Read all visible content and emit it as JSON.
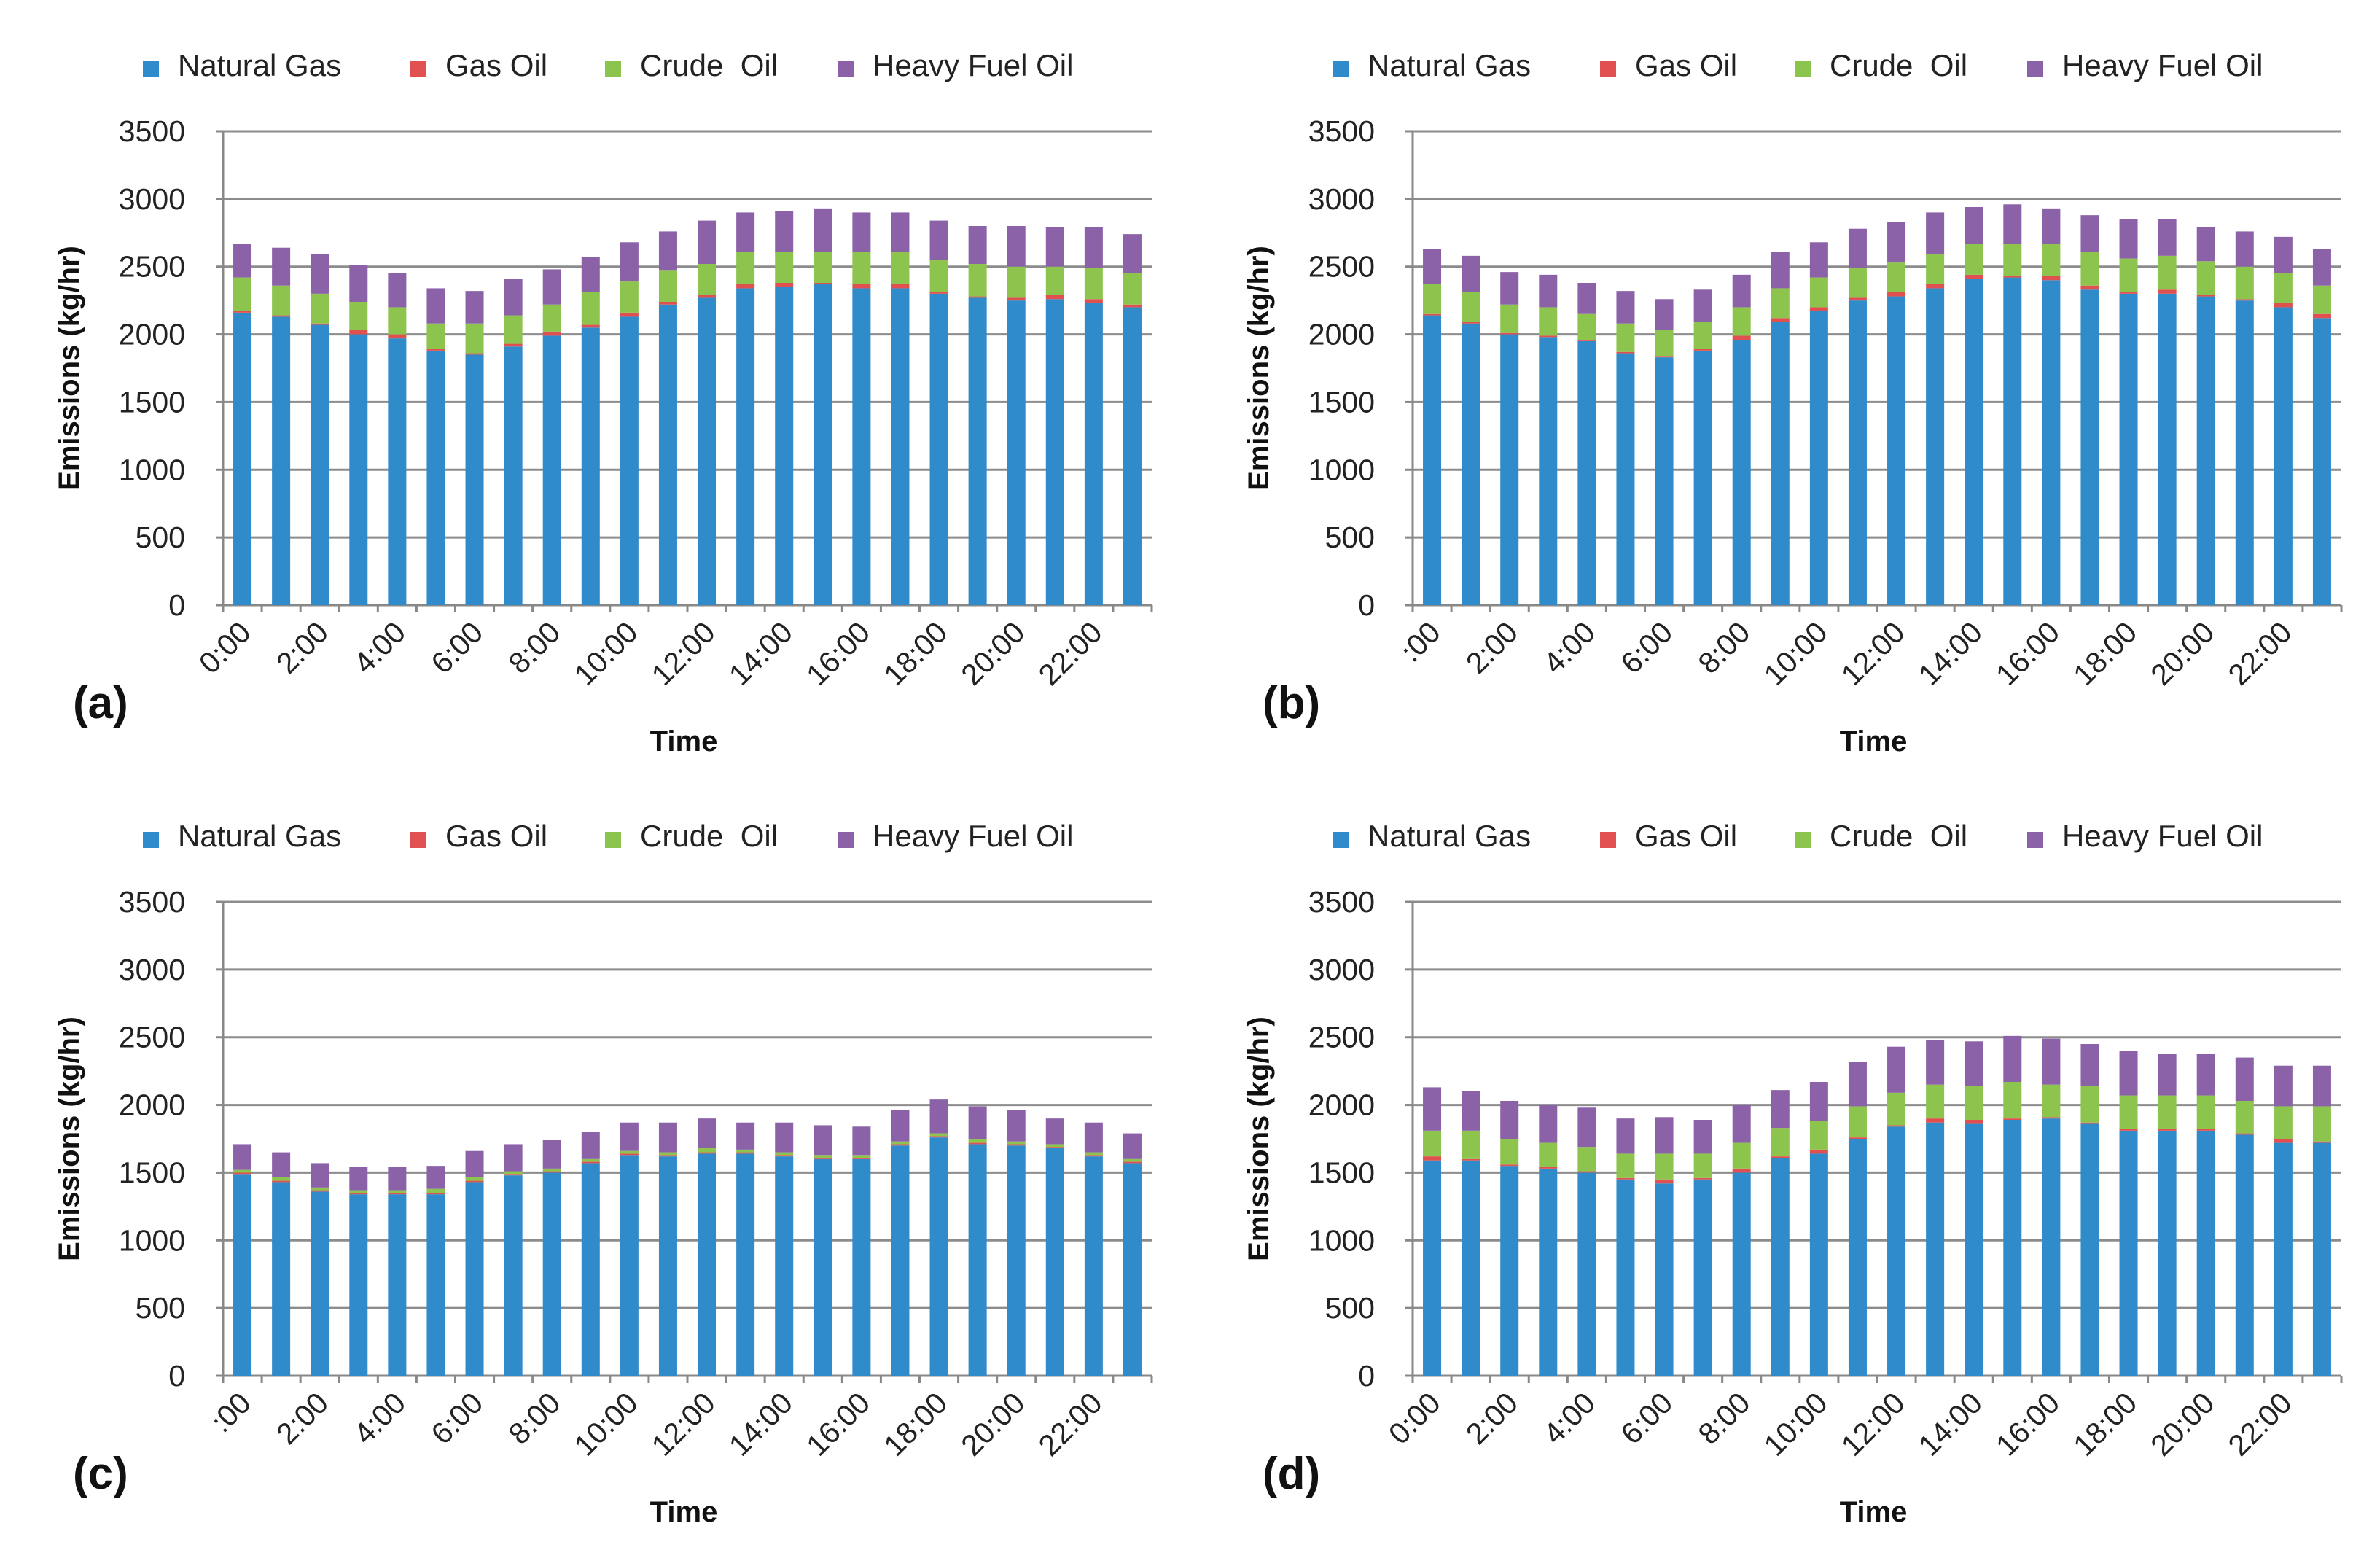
{
  "figure": {
    "legend": [
      "Natural Gas",
      "Gas Oil",
      "Crude  Oil",
      "Heavy Fuel Oil"
    ],
    "colors": {
      "Natural Gas": "#2F8BCA",
      "Gas Oil": "#E05050",
      "Crude  Oil": "#8DC44E",
      "Heavy Fuel Oil": "#8B62A8"
    }
  },
  "chart_data": [
    {
      "panel_label": "(a)",
      "type": "bar",
      "stacked": true,
      "xlabel": "Time",
      "ylabel": "Emissions (kg/hr)",
      "ylim": [
        0,
        3500
      ],
      "yticks": [
        0,
        500,
        1000,
        1500,
        2000,
        2500,
        3000,
        3500
      ],
      "xtick_labels": [
        "0:00",
        "2:00",
        "4:00",
        "6:00",
        "8:00",
        "10:00",
        "12:00",
        "14:00",
        "16:00",
        "18:00",
        "20:00",
        "22:00"
      ],
      "legend_position": "top",
      "series": [
        {
          "name": "Natural Gas",
          "values": [
            2160,
            2130,
            2070,
            2000,
            1970,
            1880,
            1850,
            1910,
            1990,
            2050,
            2130,
            2220,
            2270,
            2340,
            2350,
            2370,
            2340,
            2340,
            2300,
            2270,
            2250,
            2260,
            2230,
            2200
          ]
        },
        {
          "name": "Gas Oil",
          "values": [
            10,
            10,
            10,
            30,
            30,
            10,
            10,
            20,
            30,
            20,
            30,
            20,
            20,
            30,
            30,
            10,
            30,
            30,
            10,
            10,
            20,
            30,
            30,
            20
          ]
        },
        {
          "name": "Crude  Oil",
          "values": [
            250,
            220,
            220,
            210,
            200,
            190,
            220,
            210,
            200,
            240,
            230,
            230,
            230,
            240,
            230,
            230,
            240,
            240,
            240,
            240,
            230,
            210,
            230,
            230
          ]
        },
        {
          "name": "Heavy Fuel Oil",
          "values": [
            250,
            280,
            290,
            270,
            250,
            260,
            240,
            270,
            260,
            260,
            290,
            290,
            320,
            290,
            300,
            320,
            290,
            290,
            290,
            280,
            300,
            290,
            300,
            290
          ]
        }
      ]
    },
    {
      "panel_label": "(b)",
      "type": "bar",
      "stacked": true,
      "xlabel": "Time",
      "ylabel": "Emissions (kg/hr)",
      "ylim": [
        0,
        3500
      ],
      "yticks": [
        0,
        500,
        1000,
        1500,
        2000,
        2500,
        3000,
        3500
      ],
      "xtick_labels": [
        ":00",
        "2:00",
        "4:00",
        "6:00",
        "8:00",
        "10:00",
        "12:00",
        "14:00",
        "16:00",
        "18:00",
        "20:00",
        "22:00"
      ],
      "legend_position": "top",
      "series": [
        {
          "name": "Natural Gas",
          "values": [
            2140,
            2080,
            2000,
            1980,
            1950,
            1860,
            1830,
            1880,
            1960,
            2090,
            2170,
            2250,
            2280,
            2340,
            2410,
            2420,
            2400,
            2330,
            2300,
            2300,
            2280,
            2250,
            2200,
            2120
          ]
        },
        {
          "name": "Gas Oil",
          "values": [
            10,
            10,
            10,
            10,
            10,
            10,
            10,
            10,
            30,
            30,
            30,
            20,
            30,
            30,
            30,
            10,
            30,
            30,
            10,
            30,
            10,
            10,
            30,
            30
          ]
        },
        {
          "name": "Crude  Oil",
          "values": [
            220,
            220,
            210,
            210,
            190,
            210,
            190,
            200,
            210,
            220,
            220,
            220,
            220,
            220,
            230,
            240,
            240,
            250,
            250,
            250,
            250,
            240,
            220,
            210
          ]
        },
        {
          "name": "Heavy Fuel Oil",
          "values": [
            260,
            270,
            240,
            240,
            230,
            240,
            230,
            240,
            240,
            270,
            260,
            290,
            300,
            310,
            270,
            290,
            260,
            270,
            290,
            270,
            250,
            260,
            270,
            270
          ]
        }
      ]
    },
    {
      "panel_label": "(c)",
      "type": "bar",
      "stacked": true,
      "xlabel": "Time",
      "ylabel": "Emissions (kg/hr)",
      "ylim": [
        0,
        3500
      ],
      "yticks": [
        0,
        500,
        1000,
        1500,
        2000,
        2500,
        3000,
        3500
      ],
      "xtick_labels": [
        ":00",
        "2:00",
        "4:00",
        "6:00",
        "8:00",
        "10:00",
        "12:00",
        "14:00",
        "16:00",
        "18:00",
        "20:00",
        "22:00"
      ],
      "legend_position": "top",
      "series": [
        {
          "name": "Natural Gas",
          "values": [
            1490,
            1430,
            1360,
            1340,
            1340,
            1340,
            1430,
            1480,
            1500,
            1570,
            1630,
            1620,
            1640,
            1640,
            1620,
            1600,
            1600,
            1700,
            1760,
            1710,
            1700,
            1680,
            1620,
            1570
          ]
        },
        {
          "name": "Gas Oil",
          "values": [
            10,
            10,
            10,
            10,
            10,
            10,
            10,
            10,
            10,
            10,
            10,
            10,
            10,
            10,
            10,
            10,
            10,
            10,
            10,
            10,
            10,
            10,
            10,
            10
          ]
        },
        {
          "name": "Crude  Oil",
          "values": [
            20,
            30,
            20,
            20,
            20,
            30,
            30,
            20,
            20,
            20,
            20,
            20,
            30,
            20,
            20,
            20,
            20,
            20,
            20,
            30,
            20,
            20,
            20,
            20
          ]
        },
        {
          "name": "Heavy Fuel Oil",
          "values": [
            190,
            180,
            180,
            170,
            170,
            170,
            190,
            200,
            210,
            200,
            210,
            220,
            220,
            200,
            220,
            220,
            210,
            230,
            250,
            240,
            230,
            190,
            220,
            190
          ]
        }
      ]
    },
    {
      "panel_label": "(d)",
      "type": "bar",
      "stacked": true,
      "xlabel": "Time",
      "ylabel": "Emissions (kg/hr)",
      "ylim": [
        0,
        3500
      ],
      "yticks": [
        0,
        500,
        1000,
        1500,
        2000,
        2500,
        3000,
        3500
      ],
      "xtick_labels": [
        "0:00",
        "2:00",
        "4:00",
        "6:00",
        "8:00",
        "10:00",
        "12:00",
        "14:00",
        "16:00",
        "18:00",
        "20:00",
        "22:00"
      ],
      "legend_position": "top",
      "series": [
        {
          "name": "Natural Gas",
          "values": [
            1590,
            1590,
            1550,
            1530,
            1500,
            1450,
            1420,
            1450,
            1500,
            1610,
            1640,
            1750,
            1840,
            1870,
            1860,
            1890,
            1900,
            1860,
            1810,
            1810,
            1810,
            1780,
            1720,
            1720
          ]
        },
        {
          "name": "Gas Oil",
          "values": [
            30,
            10,
            10,
            10,
            10,
            10,
            30,
            10,
            30,
            10,
            30,
            10,
            10,
            30,
            30,
            10,
            10,
            10,
            10,
            10,
            10,
            10,
            30,
            10
          ]
        },
        {
          "name": "Crude  Oil",
          "values": [
            190,
            210,
            190,
            180,
            180,
            180,
            190,
            180,
            190,
            210,
            210,
            230,
            240,
            250,
            250,
            270,
            240,
            270,
            250,
            250,
            250,
            240,
            240,
            260
          ]
        },
        {
          "name": "Heavy Fuel Oil",
          "values": [
            320,
            290,
            280,
            280,
            290,
            260,
            270,
            250,
            280,
            280,
            290,
            330,
            340,
            330,
            330,
            340,
            340,
            310,
            330,
            310,
            310,
            320,
            300,
            300
          ]
        }
      ]
    }
  ]
}
